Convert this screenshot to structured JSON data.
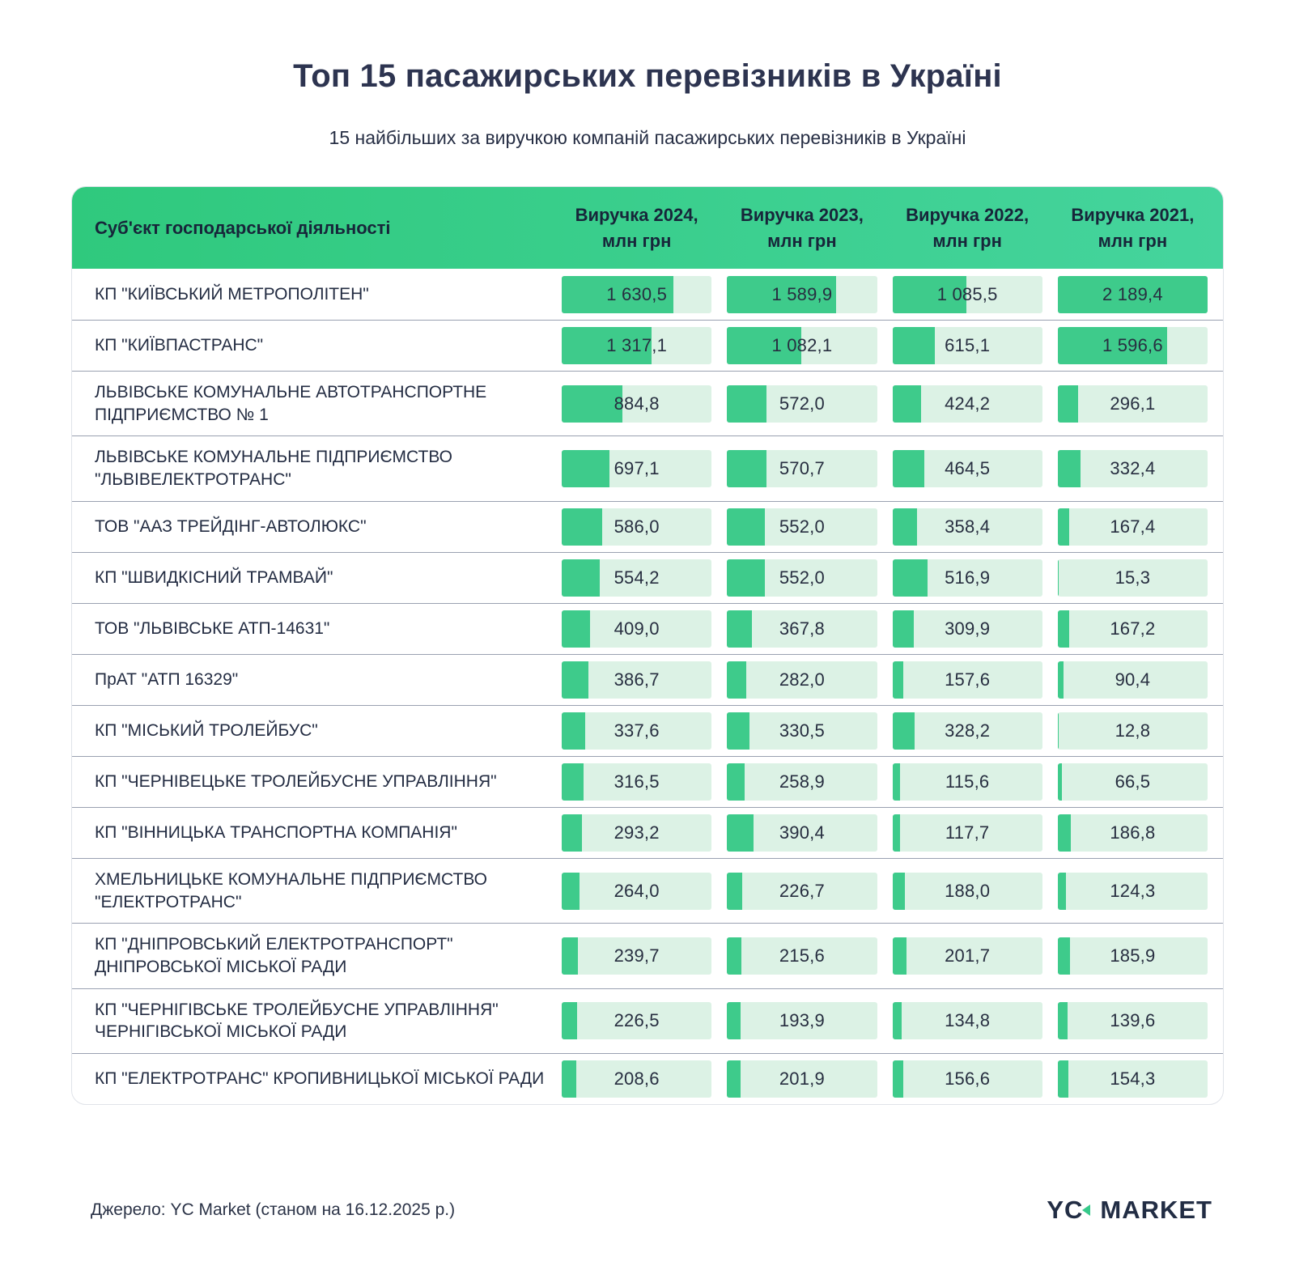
{
  "title": "Топ 15 пасажирських перевізників в Україні",
  "subtitle": "15 найбільших за виручкою компаній пасажирських перевізників в Україні",
  "table": {
    "company_header": "Суб'єкт господарської діяльності",
    "year_headers": [
      {
        "line1": "Виручка 2024,",
        "line2": "млн грн"
      },
      {
        "line1": "Виручка 2023,",
        "line2": "млн грн"
      },
      {
        "line1": "Виручка 2022,",
        "line2": "млн грн"
      },
      {
        "line1": "Виручка 2021,",
        "line2": "млн грн"
      }
    ]
  },
  "chart_data": {
    "type": "table",
    "title": "Топ 15 пасажирських перевізників в Україні",
    "subtitle": "15 найбільших за виручкою компаній пасажирських перевізників в Україні",
    "unit": "млн грн",
    "series_labels": [
      "Виручка 2024",
      "Виручка 2023",
      "Виручка 2022",
      "Виручка 2021"
    ],
    "bar_style": "in-cell horizontal bars, fill normalized to global max",
    "max_value": 2189.4,
    "rows": [
      {
        "company": "КП \"КИЇВСЬКИЙ МЕТРОПОЛІТЕН\"",
        "values": [
          1630.5,
          1589.9,
          1085.5,
          2189.4
        ],
        "labels": [
          "1 630,5",
          "1 589,9",
          "1 085,5",
          "2 189,4"
        ]
      },
      {
        "company": "КП \"КИЇВПАСТРАНС\"",
        "values": [
          1317.1,
          1082.1,
          615.1,
          1596.6
        ],
        "labels": [
          "1 317,1",
          "1 082,1",
          "615,1",
          "1 596,6"
        ]
      },
      {
        "company": "ЛЬВІВСЬКЕ КОМУНАЛЬНЕ АВТОТРАНСПОРТНЕ ПІДПРИЄМСТВО № 1",
        "values": [
          884.8,
          572.0,
          424.2,
          296.1
        ],
        "labels": [
          "884,8",
          "572,0",
          "424,2",
          "296,1"
        ]
      },
      {
        "company": "ЛЬВІВСЬКЕ КОМУНАЛЬНЕ ПІДПРИЄМСТВО \"ЛЬВІВЕЛЕКТРОТРАНС\"",
        "values": [
          697.1,
          570.7,
          464.5,
          332.4
        ],
        "labels": [
          "697,1",
          "570,7",
          "464,5",
          "332,4"
        ]
      },
      {
        "company": "ТОВ \"ААЗ ТРЕЙДІНГ-АВТОЛЮКС\"",
        "values": [
          586.0,
          552.0,
          358.4,
          167.4
        ],
        "labels": [
          "586,0",
          "552,0",
          "358,4",
          "167,4"
        ]
      },
      {
        "company": "КП \"ШВИДКІСНИЙ ТРАМВАЙ\"",
        "values": [
          554.2,
          552.0,
          516.9,
          15.3
        ],
        "labels": [
          "554,2",
          "552,0",
          "516,9",
          "15,3"
        ]
      },
      {
        "company": "ТОВ \"ЛЬВІВСЬКЕ АТП-14631\"",
        "values": [
          409.0,
          367.8,
          309.9,
          167.2
        ],
        "labels": [
          "409,0",
          "367,8",
          "309,9",
          "167,2"
        ]
      },
      {
        "company": "ПрАТ \"АТП 16329\"",
        "values": [
          386.7,
          282.0,
          157.6,
          90.4
        ],
        "labels": [
          "386,7",
          "282,0",
          "157,6",
          "90,4"
        ]
      },
      {
        "company": "КП \"МІСЬКИЙ ТРОЛЕЙБУС\"",
        "values": [
          337.6,
          330.5,
          328.2,
          12.8
        ],
        "labels": [
          "337,6",
          "330,5",
          "328,2",
          "12,8"
        ]
      },
      {
        "company": "КП \"ЧЕРНІВЕЦЬКЕ ТРОЛЕЙБУСНЕ УПРАВЛІННЯ\"",
        "values": [
          316.5,
          258.9,
          115.6,
          66.5
        ],
        "labels": [
          "316,5",
          "258,9",
          "115,6",
          "66,5"
        ]
      },
      {
        "company": "КП \"ВІННИЦЬКА ТРАНСПОРТНА КОМПАНІЯ\"",
        "values": [
          293.2,
          390.4,
          117.7,
          186.8
        ],
        "labels": [
          "293,2",
          "390,4",
          "117,7",
          "186,8"
        ]
      },
      {
        "company": "ХМЕЛЬНИЦЬКЕ КОМУНАЛЬНЕ ПІДПРИЄМСТВО \"ЕЛЕКТРОТРАНС\"",
        "values": [
          264.0,
          226.7,
          188.0,
          124.3
        ],
        "labels": [
          "264,0",
          "226,7",
          "188,0",
          "124,3"
        ]
      },
      {
        "company": "КП \"ДНІПРОВСЬКИЙ ЕЛЕКТРОТРАНСПОРТ\" ДНІПРОВСЬКОЇ МІСЬКОЇ РАДИ",
        "values": [
          239.7,
          215.6,
          201.7,
          185.9
        ],
        "labels": [
          "239,7",
          "215,6",
          "201,7",
          "185,9"
        ]
      },
      {
        "company": "КП \"ЧЕРНІГІВСЬКЕ ТРОЛЕЙБУСНЕ УПРАВЛІННЯ\" ЧЕРНІГІВСЬКОЇ МІСЬКОЇ РАДИ",
        "values": [
          226.5,
          193.9,
          134.8,
          139.6
        ],
        "labels": [
          "226,5",
          "193,9",
          "134,8",
          "139,6"
        ]
      },
      {
        "company": "КП \"ЕЛЕКТРОТРАНС\" КРОПИВНИЦЬКОЇ МІСЬКОЇ РАДИ",
        "values": [
          208.6,
          201.9,
          156.6,
          154.3
        ],
        "labels": [
          "208,6",
          "201,9",
          "156,6",
          "154,3"
        ]
      }
    ]
  },
  "footer": {
    "source": "Джерело: YC Market (станом на 16.12.2025 р.)",
    "logo_yc": "YC",
    "logo_market": "MARKET"
  },
  "colors": {
    "bar_fill": "#3ecb8b",
    "bar_track": "#dcf2e5",
    "header_gradient_left": "#2fc97d",
    "header_gradient_right": "#45d49d",
    "text_navy": "#262e44",
    "logo_triangle_green": "#36c98a",
    "row_separator": "#9aa1b1"
  }
}
